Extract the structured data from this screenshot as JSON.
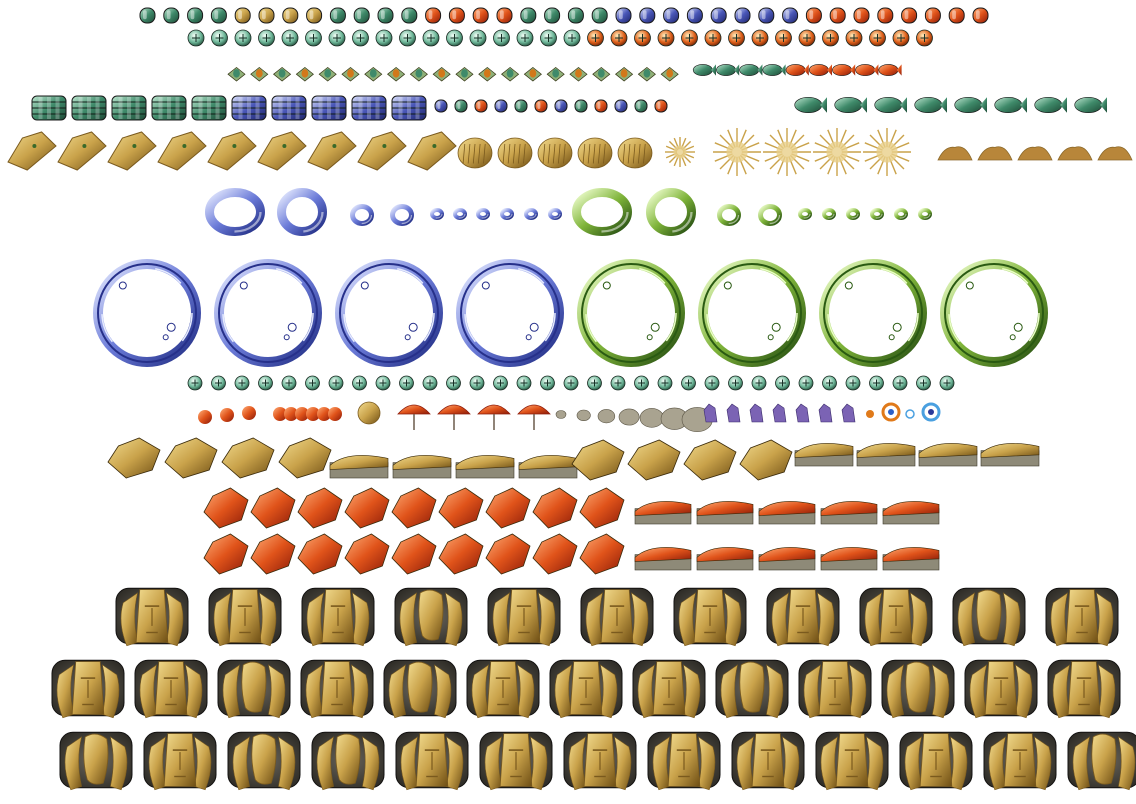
{
  "sheet": {
    "background": "#ffffff"
  },
  "palette": {
    "green_metal": "#3f8a6a",
    "green_light": "#9ad6b8",
    "blue_metal": "#4a57b8",
    "blue_light": "#b8c3f2",
    "orange_core": "#e0611b",
    "gold": "#c9a24a",
    "gold_dark": "#7a5a1e",
    "brown": "#8c6a2c",
    "red_orange": "#d9491a",
    "red_dark": "#8f1c0a",
    "ring_blue": "#5567c8",
    "ring_blue_light": "#d7deff",
    "ring_green": "#5f9a2a",
    "ring_green_light": "#d8f0b0",
    "rock_gray": "#6f6a5c",
    "rock_light": "#b9b09a",
    "stone_dark": "#3a3834",
    "stone_mid": "#5a574f",
    "purple": "#7b63b4",
    "cyan_ring": "#4aa0e0"
  },
  "sprite_groups": [
    {
      "name": "small-capsules-row",
      "icon": "capsule-sprite",
      "count": 36
    },
    {
      "name": "small-orbs-row",
      "icon": "orb-sprite",
      "count": 32
    },
    {
      "name": "bugs-and-birds-row",
      "icon": "bug-sprite",
      "count": 29
    },
    {
      "name": "mechanical-row",
      "icon": "drum-sprite",
      "count": 30
    },
    {
      "name": "dragon-heads-row",
      "icon": "dragon-head-sprite",
      "count": 25
    },
    {
      "name": "small-rings-row",
      "icon": "ring-sprite",
      "count": 22
    },
    {
      "name": "big-rings-row",
      "icon": "big-ring-sprite",
      "count": 8
    },
    {
      "name": "tiny-orbs-row",
      "icon": "orb-sprite",
      "count": 33
    },
    {
      "name": "debris-row",
      "icon": "debris-sprite",
      "count": 30
    },
    {
      "name": "gold-rocks-row",
      "icon": "rock-sprite",
      "count": 16
    },
    {
      "name": "red-rocks-rows",
      "icon": "red-rock-sprite",
      "count": 28
    },
    {
      "name": "moai-rows",
      "icon": "moai-sprite",
      "count": 38
    }
  ]
}
